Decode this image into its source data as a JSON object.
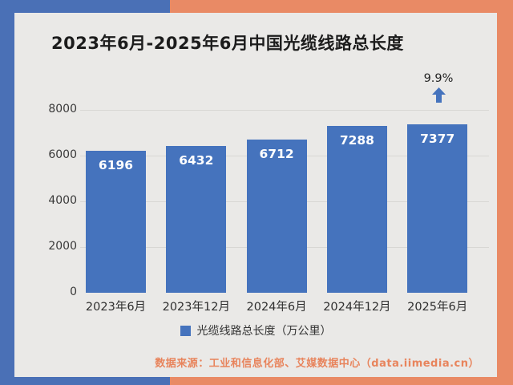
{
  "frame": {
    "blue": "#4a70b6",
    "orange": "#e98a65",
    "card_bg": "#eae9e7"
  },
  "title": "2023年6月-2025年6月中国光缆线路总长度",
  "annotation": {
    "label": "9.9%",
    "arrow_icon": "up-arrow",
    "arrow_color": "#4573bd"
  },
  "chart_data": {
    "type": "bar",
    "categories": [
      "2023年6月",
      "2023年12月",
      "2024年6月",
      "2024年12月",
      "2025年6月"
    ],
    "values": [
      6196,
      6432,
      6712,
      7288,
      7377
    ],
    "title": "2023年6月-2025年6月中国光缆线路总长度",
    "xlabel": "",
    "ylabel": "",
    "ylim": [
      0,
      8000
    ],
    "yticks": [
      0,
      2000,
      4000,
      6000,
      8000
    ],
    "grid": true,
    "bar_color": "#4573bd",
    "value_label_color": "#ffffff",
    "legend": [
      "光缆线路总长度（万公里）"
    ],
    "legend_position": "bottom",
    "annotation_last_bar": "9.9%"
  },
  "legend": {
    "label": "光缆线路总长度（万公里）",
    "marker_color": "#4573bd"
  },
  "source": "数据来源：工业和信息化部、艾媒数据中心（data.iimedia.cn）"
}
